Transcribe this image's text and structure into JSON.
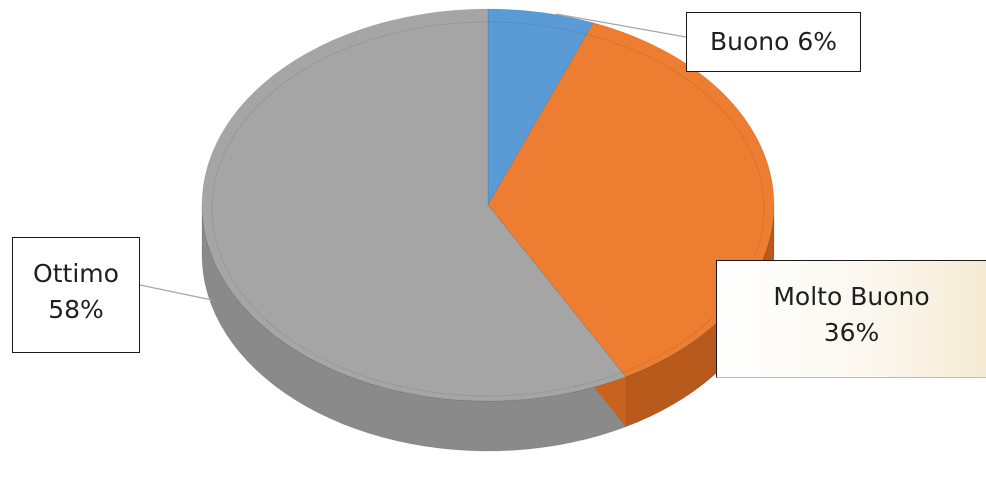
{
  "chart_data": {
    "type": "pie",
    "style": "3d",
    "categories": [
      "Buono",
      "Molto Buono",
      "Ottimo"
    ],
    "values": [
      6,
      36,
      58
    ],
    "unit": "%",
    "colors": [
      "#5b9bd5",
      "#ed7d31",
      "#a5a5a5"
    ],
    "side_colors": [
      "#3f7fb8",
      "#b85a1c",
      "#8a8a8a"
    ],
    "start_angle_deg": 0,
    "direction": "clockwise",
    "legend": "none",
    "data_labels": [
      {
        "name": "Buono",
        "text": "Buono 6%"
      },
      {
        "name": "Molto Buono",
        "line1": "Molto Buono",
        "line2": "36%"
      },
      {
        "name": "Ottimo",
        "line1": "Ottimo",
        "line2": "58%"
      }
    ]
  }
}
